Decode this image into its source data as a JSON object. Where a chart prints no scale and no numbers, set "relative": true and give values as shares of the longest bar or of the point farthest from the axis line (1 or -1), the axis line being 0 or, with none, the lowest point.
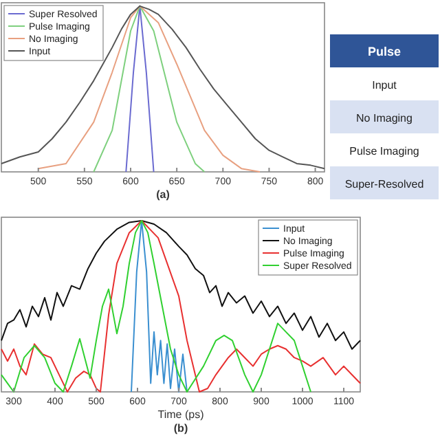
{
  "chart_data": [
    {
      "type": "line",
      "relative": true,
      "xlim": [
        460,
        810
      ],
      "xticks": [
        500,
        550,
        600,
        650,
        700,
        750,
        800
      ],
      "annotations": [
        "(a)"
      ],
      "legend": "top left",
      "series": [
        {
          "name": "Super Resolved",
          "color": "#6a6ad0",
          "x": [
            595,
            603,
            610,
            617,
            625
          ],
          "values": [
            0,
            0.6,
            1,
            0.6,
            0
          ]
        },
        {
          "name": "Pulse Imaging",
          "color": "#7ed07e",
          "x": [
            560,
            580,
            600,
            610,
            625,
            650,
            670,
            680
          ],
          "values": [
            0,
            0.25,
            0.85,
            1,
            0.85,
            0.3,
            0.05,
            0
          ]
        },
        {
          "name": "No Imaging",
          "color": "#e8a080",
          "x": [
            500,
            530,
            560,
            580,
            600,
            610,
            630,
            650,
            680,
            700,
            720,
            740
          ],
          "values": [
            0.02,
            0.05,
            0.3,
            0.6,
            0.93,
            1,
            0.9,
            0.65,
            0.25,
            0.1,
            0.02,
            0
          ]
        },
        {
          "name": "Input",
          "color": "#555555",
          "x": [
            460,
            480,
            500,
            515,
            530,
            545,
            560,
            570,
            580,
            590,
            600,
            610,
            620,
            630,
            645,
            660,
            675,
            690,
            705,
            720,
            735,
            750,
            765,
            780,
            795,
            810
          ],
          "values": [
            0.05,
            0.09,
            0.12,
            0.2,
            0.3,
            0.42,
            0.55,
            0.65,
            0.75,
            0.86,
            0.95,
            1,
            0.98,
            0.95,
            0.86,
            0.75,
            0.62,
            0.5,
            0.4,
            0.3,
            0.2,
            0.13,
            0.09,
            0.05,
            0.04,
            0.02
          ]
        }
      ]
    },
    {
      "type": "line",
      "relative": true,
      "xlim": [
        270,
        1140
      ],
      "xticks": [
        300,
        400,
        500,
        600,
        700,
        800,
        900,
        1000,
        1100
      ],
      "xlabel": "Time (ps)",
      "annotations": [
        "(b)"
      ],
      "legend": "top right",
      "series": [
        {
          "name": "Input",
          "color": "#3a8fd0",
          "x": [
            585,
            598,
            610,
            622,
            632,
            640,
            648,
            656,
            664,
            672,
            680,
            690,
            700,
            710,
            720
          ],
          "values": [
            0,
            0.7,
            1,
            0.7,
            0.05,
            0.35,
            0.1,
            0.3,
            0.05,
            0.28,
            0.02,
            0.25,
            0,
            0.22,
            0
          ]
        },
        {
          "name": "No Imaging",
          "color": "#111111",
          "x": [
            270,
            285,
            300,
            315,
            330,
            345,
            360,
            375,
            390,
            405,
            420,
            440,
            460,
            480,
            500,
            520,
            550,
            580,
            610,
            640,
            670,
            700,
            720,
            740,
            760,
            775,
            790,
            805,
            820,
            840,
            860,
            880,
            900,
            920,
            940,
            960,
            980,
            1000,
            1020,
            1040,
            1060,
            1080,
            1100,
            1120,
            1140
          ],
          "values": [
            0.3,
            0.4,
            0.42,
            0.48,
            0.38,
            0.5,
            0.44,
            0.55,
            0.42,
            0.58,
            0.5,
            0.62,
            0.6,
            0.72,
            0.81,
            0.88,
            0.95,
            0.99,
            1,
            0.98,
            0.93,
            0.85,
            0.8,
            0.72,
            0.68,
            0.58,
            0.62,
            0.5,
            0.58,
            0.52,
            0.56,
            0.46,
            0.53,
            0.44,
            0.5,
            0.4,
            0.46,
            0.36,
            0.44,
            0.32,
            0.4,
            0.3,
            0.35,
            0.25,
            0.3
          ]
        },
        {
          "name": "Pulse Imaging",
          "color": "#e83030",
          "x": [
            270,
            285,
            300,
            315,
            330,
            350,
            370,
            390,
            410,
            430,
            450,
            470,
            485,
            500,
            510,
            530,
            550,
            580,
            610,
            650,
            700,
            720,
            740,
            750,
            770,
            790,
            820,
            840,
            860,
            880,
            900,
            920,
            940,
            960,
            980,
            1000,
            1020,
            1050,
            1080,
            1100,
            1140
          ],
          "values": [
            0.25,
            0.18,
            0.25,
            0.15,
            0.1,
            0.28,
            0.22,
            0.2,
            0.1,
            0,
            0.08,
            0.12,
            0.1,
            0.02,
            0,
            0.45,
            0.75,
            0.93,
            1,
            0.9,
            0.56,
            0.3,
            0.1,
            0,
            0.02,
            0.1,
            0.2,
            0.25,
            0.2,
            0.15,
            0.22,
            0.25,
            0.27,
            0.25,
            0.2,
            0.18,
            0.15,
            0.2,
            0.1,
            0.15,
            0.05
          ]
        },
        {
          "name": "Super Resolved",
          "color": "#30d030",
          "x": [
            270,
            285,
            300,
            325,
            350,
            375,
            400,
            420,
            440,
            460,
            485,
            500,
            515,
            530,
            550,
            565,
            580,
            595,
            610,
            625,
            640,
            660,
            680,
            700,
            720,
            760,
            790,
            810,
            830,
            860,
            880,
            900,
            920,
            940,
            960,
            980,
            1000,
            1020
          ],
          "values": [
            0.1,
            0.05,
            0,
            0.2,
            0.27,
            0.2,
            0.05,
            0,
            0.15,
            0.31,
            0.08,
            0.3,
            0.5,
            0.6,
            0.34,
            0.5,
            0.75,
            0.93,
            1,
            0.93,
            0.75,
            0.5,
            0.25,
            0.1,
            0,
            0.15,
            0.3,
            0.33,
            0.3,
            0.1,
            0,
            0.1,
            0.25,
            0.4,
            0.35,
            0.3,
            0.15,
            0
          ]
        }
      ]
    },
    {
      "type": "other",
      "title": "Pulse",
      "annotations": [
        "Input",
        "No Imaging",
        "Pulse Imaging",
        "Super-Resolved"
      ]
    }
  ]
}
